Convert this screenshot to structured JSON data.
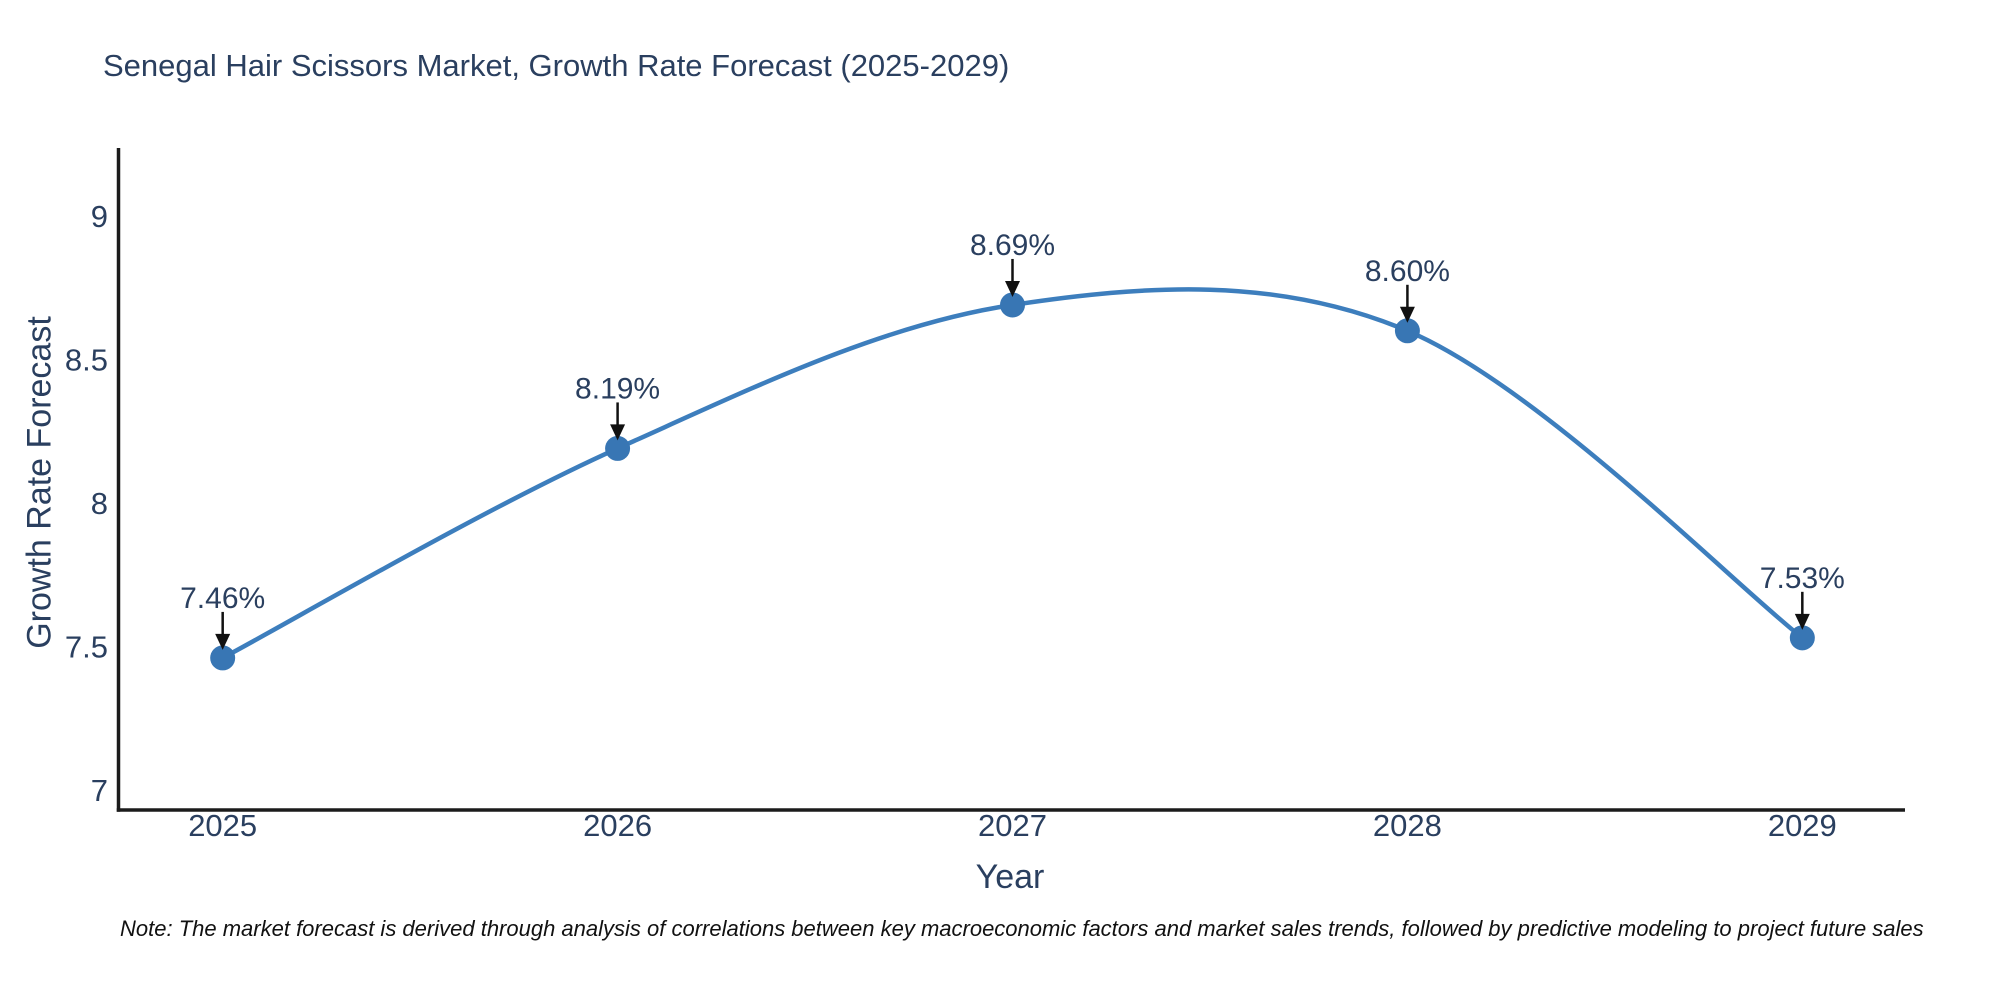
{
  "chart_data": {
    "type": "line",
    "line_shape": "spline",
    "title": "Senegal Hair Scissors Market, Growth Rate Forecast (2025-2029)",
    "xlabel": "Year",
    "ylabel": "Growth Rate Forecast",
    "categories": [
      2025,
      2026,
      2027,
      2028,
      2029
    ],
    "values": [
      7.46,
      8.19,
      8.69,
      8.6,
      7.53
    ],
    "point_labels": [
      "7.46%",
      "8.19%",
      "8.69%",
      "8.60%",
      "7.53%"
    ],
    "x_tick_labels": [
      "2025",
      "2026",
      "2027",
      "2028",
      "2029"
    ],
    "y_ticks": [
      7,
      7.5,
      8,
      8.5,
      9
    ],
    "y_tick_labels": [
      "7",
      "7.5",
      "8",
      "8.5",
      "9"
    ],
    "xlim": [
      2024.74,
      2029.26
    ],
    "ylim": [
      6.93,
      9.23
    ],
    "grid": false,
    "legend": false,
    "annotations_have_arrows": true,
    "colors": {
      "line": "#3d7ebd",
      "marker": "#3876b4",
      "text": "#2a3f5f",
      "axis": "#1b1b1b",
      "arrow": "#111111",
      "background": "#ffffff"
    },
    "note": "Note: The market forecast is derived through analysis of correlations between key macroeconomic factors and market sales trends, followed by predictive modeling to project future sales"
  }
}
